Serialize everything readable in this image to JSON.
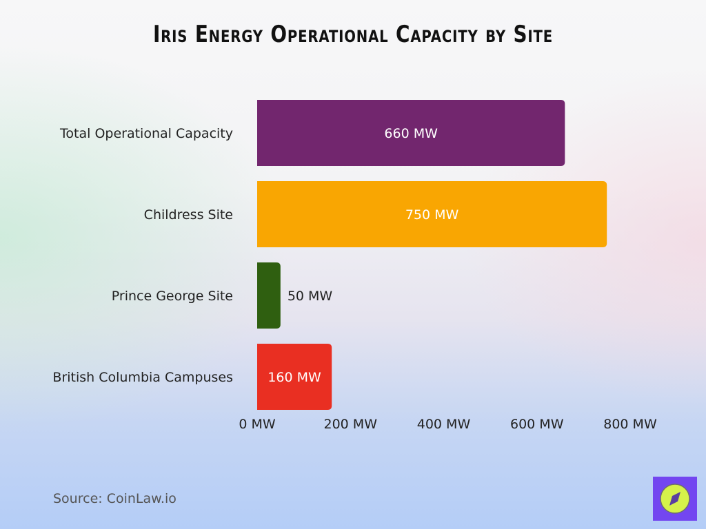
{
  "title": "Iris Energy Operational Capacity by Site",
  "source": "Source: CoinLaw.io",
  "logo_icon": "compass-icon",
  "chart_data": {
    "type": "bar",
    "orientation": "horizontal",
    "title": "Iris Energy Operational Capacity by Site",
    "categories": [
      "Total Operational Capacity",
      "Childress Site",
      "Prince George Site",
      "British Columbia Campuses"
    ],
    "values": [
      660,
      750,
      50,
      160
    ],
    "data_labels": [
      "660 MW",
      "750 MW",
      "50 MW",
      "160 MW"
    ],
    "colors": [
      "#72266e",
      "#f9a602",
      "#2f5f10",
      "#e92f22"
    ],
    "xlim": [
      0,
      800
    ],
    "x_ticks": [
      0,
      200,
      400,
      600,
      800
    ],
    "x_tick_labels": [
      "0 MW",
      "200 MW",
      "400 MW",
      "600 MW",
      "800 MW"
    ],
    "grid": false,
    "legend": "none"
  }
}
